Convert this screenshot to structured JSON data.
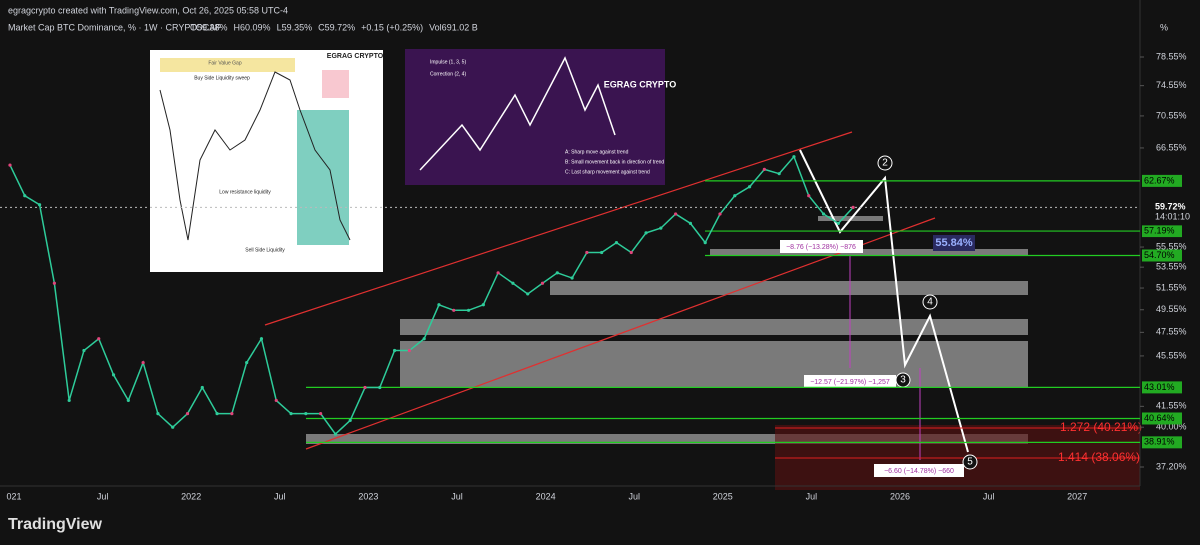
{
  "header": {
    "credit": "egragcrypto created with TradingView.com, Oct 26, 2025 05:58 UTC-4",
    "symbol": "Market Cap BTC Dominance, % · 1W · CRYPTOCAP",
    "ohlc": [
      "O59.38%",
      "H60.09%",
      "L59.35%",
      "C59.72%",
      "+0.15 (+0.25%)",
      "Vol691.02 B"
    ]
  },
  "price_axis": {
    "unit": "%",
    "ticks": [
      {
        "value": 78.55,
        "label": "78.55%"
      },
      {
        "value": 74.55,
        "label": "74.55%"
      },
      {
        "value": 70.55,
        "label": "70.55%"
      },
      {
        "value": 66.55,
        "label": "66.55%"
      },
      {
        "value": 55.55,
        "label": "55.55%"
      },
      {
        "value": 53.55,
        "label": "53.55%"
      },
      {
        "value": 51.55,
        "label": "51.55%"
      },
      {
        "value": 49.55,
        "label": "49.55%"
      },
      {
        "value": 47.55,
        "label": "47.55%"
      },
      {
        "value": 45.55,
        "label": "45.55%"
      },
      {
        "value": 41.55,
        "label": "41.55%"
      },
      {
        "value": 40.0,
        "label": "40.00%"
      },
      {
        "value": 37.2,
        "label": "37.20%"
      }
    ]
  },
  "levels": [
    {
      "value": 62.67,
      "label": "62.67%"
    },
    {
      "value": 57.19,
      "label": "57.19%"
    },
    {
      "value": 54.7,
      "label": "54.70%"
    },
    {
      "value": 43.01,
      "label": "43.01%"
    },
    {
      "value": 40.64,
      "label": "40.64%"
    },
    {
      "value": 38.91,
      "label": "38.91%"
    }
  ],
  "last_price": {
    "value": 59.72,
    "label": "59.72%",
    "countdown": "14:01:10"
  },
  "time_axis": [
    "021",
    "Jul",
    "2022",
    "Jul",
    "2023",
    "Jul",
    "2024",
    "Jul",
    "2025",
    "Jul",
    "2026",
    "Jul",
    "2027"
  ],
  "price_series": {
    "values": [
      64.5,
      61,
      60,
      52,
      42,
      46,
      47,
      44,
      42,
      45,
      41,
      40,
      41,
      43,
      41,
      41,
      45,
      47,
      42,
      41,
      41,
      41,
      39.5,
      40.5,
      43,
      43,
      46,
      46,
      47,
      50,
      49.5,
      49.5,
      50,
      53,
      52,
      51,
      52,
      53,
      52.5,
      55,
      55,
      56,
      55,
      57,
      57.5,
      59,
      58,
      56,
      59,
      61,
      62,
      64,
      63.5,
      65.5,
      61,
      59,
      58,
      59.72
    ]
  },
  "annotations": {
    "target": "55.84%",
    "drop1": "−8.76 (−13.28%) −876",
    "drop2": "−12.57 (−21.97%) −1,257",
    "drop3": "−6.60 (−14.78%) −660",
    "fib1": "1.272 (40.21%)",
    "fib2": "1.414 (38.06%)",
    "waves": [
      "2",
      "3",
      "4",
      "5"
    ]
  },
  "inset_left": {
    "labels": [
      "Fair Value Gap",
      "Buy Side Liquidity sweep",
      "Low resistance liquidity",
      "Sell Side Liquidity"
    ],
    "brand": "EGRAG CRYPTO"
  },
  "inset_right": {
    "legend": [
      "Impulse (1, 3, 5)",
      "Correction (2, 4)"
    ],
    "notes": [
      "A: Sharp move against trend",
      "B: Small movement back in direction of trend",
      "C: Last sharp movement against trend"
    ],
    "brand": "EGRAG CRYPTO"
  },
  "footer": "TradingView"
}
